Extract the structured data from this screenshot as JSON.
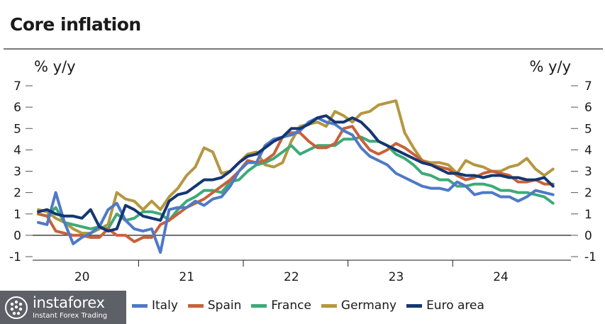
{
  "chart_data": {
    "type": "line",
    "title": "Core inflation",
    "ylabel_left": "% y/y",
    "ylabel_right": "% y/y",
    "ylim": [
      -1,
      7
    ],
    "yticks": [
      -1,
      0,
      1,
      2,
      3,
      4,
      5,
      6,
      7
    ],
    "x_start": "2020-01",
    "x_end": "2024-12",
    "xtick_labels": [
      "20",
      "21",
      "22",
      "23",
      "24"
    ],
    "grid": false,
    "legend_position": "bottom",
    "series": [
      {
        "name": "Italy",
        "color": "#4f79c8",
        "values": [
          0.6,
          0.5,
          2.0,
          0.6,
          -0.4,
          -0.1,
          0.1,
          0.4,
          1.2,
          1.5,
          0.7,
          0.3,
          0.2,
          0.3,
          -0.8,
          1.2,
          1.3,
          1.3,
          1.6,
          1.4,
          1.7,
          1.8,
          2.3,
          3.0,
          3.4,
          3.4,
          4.2,
          4.5,
          4.6,
          4.7,
          4.9,
          5.3,
          5.5,
          5.3,
          5.2,
          4.9,
          4.7,
          4.1,
          3.7,
          3.5,
          3.3,
          2.9,
          2.7,
          2.5,
          2.3,
          2.2,
          2.2,
          2.1,
          2.5,
          2.3,
          1.9,
          2.0,
          2.0,
          1.8,
          1.8,
          1.6,
          1.8,
          2.1,
          2.0,
          1.9
        ]
      },
      {
        "name": "Spain",
        "color": "#c8613a",
        "values": [
          1.0,
          0.9,
          0.2,
          0.1,
          0.0,
          0.0,
          -0.1,
          -0.1,
          0.3,
          0.0,
          0.0,
          -0.3,
          -0.1,
          -0.1,
          0.5,
          0.7,
          1.0,
          1.3,
          1.5,
          1.7,
          2.0,
          2.3,
          2.6,
          3.0,
          3.5,
          3.4,
          3.5,
          3.8,
          4.6,
          4.8,
          4.8,
          4.4,
          4.1,
          4.1,
          4.3,
          5.0,
          5.1,
          4.5,
          4.0,
          3.8,
          4.0,
          4.3,
          4.1,
          3.8,
          3.5,
          3.3,
          3.2,
          3.1,
          2.8,
          2.6,
          2.7,
          2.9,
          3.0,
          2.9,
          2.8,
          2.5,
          2.5,
          2.6,
          2.4,
          2.4
        ]
      },
      {
        "name": "France",
        "color": "#3daa78",
        "values": [
          1.0,
          0.9,
          1.3,
          0.6,
          0.5,
          0.4,
          0.3,
          0.4,
          0.3,
          1.0,
          0.7,
          0.8,
          1.1,
          1.1,
          1.0,
          0.7,
          1.2,
          1.6,
          1.8,
          2.1,
          2.1,
          2.0,
          2.5,
          2.6,
          3.0,
          3.3,
          3.4,
          3.6,
          3.9,
          4.2,
          3.8,
          4.0,
          4.2,
          4.2,
          4.2,
          4.5,
          4.5,
          4.6,
          4.4,
          4.4,
          4.2,
          3.8,
          3.6,
          3.3,
          2.9,
          2.8,
          2.6,
          2.6,
          2.3,
          2.3,
          2.4,
          2.4,
          2.3,
          2.1,
          2.1,
          2.0,
          2.0,
          1.9,
          1.8,
          1.5
        ]
      },
      {
        "name": "Germany",
        "color": "#b59741",
        "values": [
          1.2,
          1.1,
          0.8,
          0.6,
          0.3,
          0.1,
          0.1,
          0.3,
          0.5,
          2.0,
          1.7,
          1.6,
          1.2,
          1.6,
          1.2,
          1.8,
          2.2,
          2.8,
          3.2,
          4.1,
          3.9,
          2.9,
          3.0,
          3.4,
          3.8,
          3.9,
          3.3,
          3.2,
          3.4,
          4.4,
          5.1,
          5.2,
          5.3,
          5.1,
          5.8,
          5.6,
          5.3,
          5.7,
          5.8,
          6.1,
          6.2,
          6.3,
          4.8,
          4.1,
          3.5,
          3.4,
          3.4,
          3.3,
          2.9,
          3.5,
          3.3,
          3.2,
          3.0,
          3.0,
          3.2,
          3.3,
          3.6,
          3.1,
          2.8,
          3.1
        ]
      },
      {
        "name": "Euro area",
        "color": "#143672",
        "values": [
          1.1,
          1.2,
          1.0,
          0.9,
          0.9,
          0.8,
          1.2,
          0.4,
          0.2,
          0.3,
          1.4,
          1.2,
          0.9,
          0.8,
          0.7,
          1.6,
          1.9,
          2.0,
          2.3,
          2.6,
          2.6,
          2.7,
          3.0,
          3.4,
          3.7,
          3.8,
          4.1,
          4.4,
          4.6,
          5.0,
          5.0,
          5.2,
          5.5,
          5.6,
          5.3,
          5.3,
          5.5,
          5.3,
          4.9,
          4.4,
          4.2,
          4.0,
          3.8,
          3.6,
          3.4,
          3.3,
          3.1,
          2.9,
          2.9,
          2.8,
          2.8,
          2.7,
          2.8,
          2.8,
          2.7,
          2.7,
          2.6,
          2.6,
          2.7,
          2.3
        ]
      }
    ]
  },
  "watermark": {
    "brand": "instaforex",
    "tagline": "Instant Forex Trading"
  }
}
